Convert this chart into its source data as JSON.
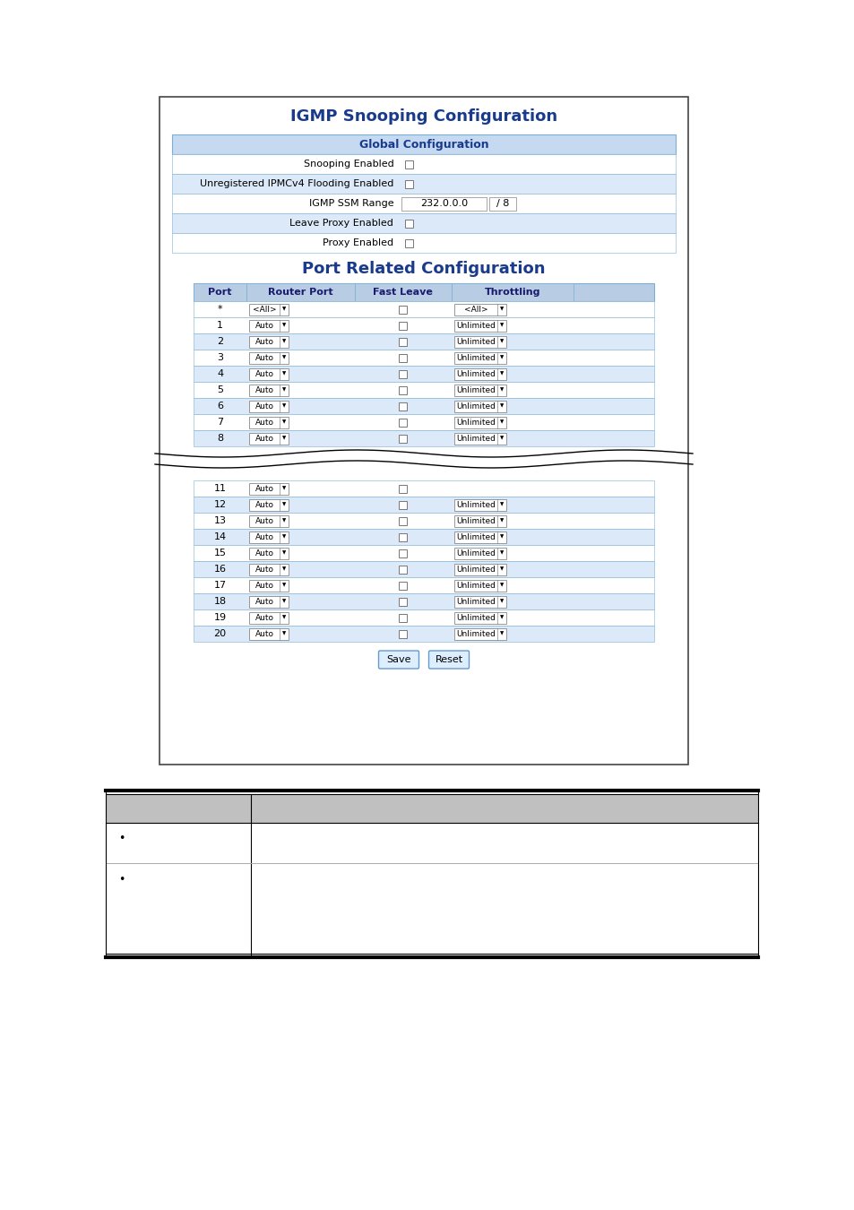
{
  "title": "IGMP Snooping Configuration",
  "global_config_title": "Global Configuration",
  "global_rows": [
    {
      "label": "Snooping Enabled",
      "has_checkbox": true,
      "shaded": false
    },
    {
      "label": "Unregistered IPMCv4 Flooding Enabled",
      "has_checkbox": true,
      "shaded": true
    },
    {
      "label": "IGMP SSM Range",
      "has_input": true,
      "input_val": "232.0.0.0",
      "input_suffix": "/ 8",
      "shaded": false
    },
    {
      "label": "Leave Proxy Enabled",
      "has_checkbox": true,
      "shaded": true
    },
    {
      "label": "Proxy Enabled",
      "has_checkbox": true,
      "shaded": false
    }
  ],
  "port_config_title": "Port Related Configuration",
  "port_col_headers": [
    "Port",
    "Router Port",
    "Fast Leave",
    "Throttling"
  ],
  "port_rows_top": [
    {
      "port": "*",
      "router": "<All>",
      "throttle": "<All>",
      "shaded": false
    },
    {
      "port": "1",
      "router": "Auto",
      "throttle": "Unlimited",
      "shaded": false
    },
    {
      "port": "2",
      "router": "Auto",
      "throttle": "Unlimited",
      "shaded": true
    },
    {
      "port": "3",
      "router": "Auto",
      "throttle": "Unlimited",
      "shaded": false
    },
    {
      "port": "4",
      "router": "Auto",
      "throttle": "Unlimited",
      "shaded": true
    },
    {
      "port": "5",
      "router": "Auto",
      "throttle": "Unlimited",
      "shaded": false
    },
    {
      "port": "6",
      "router": "Auto",
      "throttle": "Unlimited",
      "shaded": true
    },
    {
      "port": "7",
      "router": "Auto",
      "throttle": "Unlimited",
      "shaded": false
    },
    {
      "port": "8",
      "router": "Auto",
      "throttle": "Unlimited",
      "shaded": true
    }
  ],
  "port_rows_bottom": [
    {
      "port": "11",
      "router": "Auto",
      "throttle": "",
      "shaded": false
    },
    {
      "port": "12",
      "router": "Auto",
      "throttle": "Unlimited",
      "shaded": true
    },
    {
      "port": "13",
      "router": "Auto",
      "throttle": "Unlimited",
      "shaded": false
    },
    {
      "port": "14",
      "router": "Auto",
      "throttle": "Unlimited",
      "shaded": true
    },
    {
      "port": "15",
      "router": "Auto",
      "throttle": "Unlimited",
      "shaded": false
    },
    {
      "port": "16",
      "router": "Auto",
      "throttle": "Unlimited",
      "shaded": true
    },
    {
      "port": "17",
      "router": "Auto",
      "throttle": "Unlimited",
      "shaded": false
    },
    {
      "port": "18",
      "router": "Auto",
      "throttle": "Unlimited",
      "shaded": true
    },
    {
      "port": "19",
      "router": "Auto",
      "throttle": "Unlimited",
      "shaded": false
    },
    {
      "port": "20",
      "router": "Auto",
      "throttle": "Unlimited",
      "shaded": true
    }
  ],
  "color_blue_title": "#1a3a8c",
  "color_header_bg": "#c5d9f1",
  "color_row_shaded": "#dce9f8",
  "color_row_normal": "#ffffff",
  "color_border": "#7bafd4",
  "color_outer_border": "#444444",
  "color_table_header_bg": "#b8cce4",
  "color_bottom_header_bg": "#c0c0c0",
  "color_bottom_border": "#000000",
  "fig_w": 954,
  "fig_h": 1350
}
